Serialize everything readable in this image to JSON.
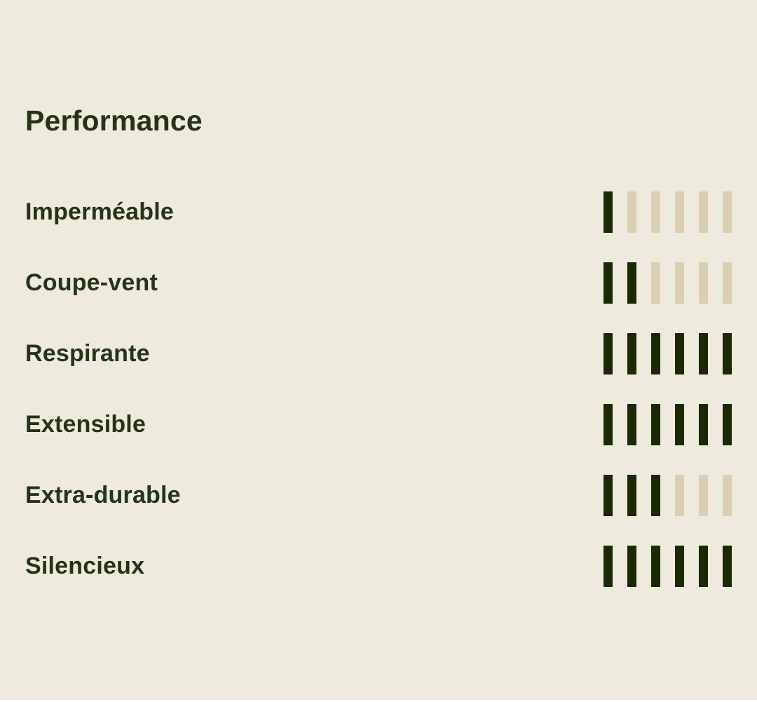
{
  "colors": {
    "background": "#EEEADD",
    "text": "#253417",
    "bar_filled": "#1B2804",
    "bar_empty": "#DBCFB3",
    "bottom_strip": "#FFFFFF"
  },
  "section": {
    "title": "Performance"
  },
  "chart_data": {
    "type": "bar",
    "subtype": "segmented-rating",
    "title": "Performance",
    "categories": [
      "Imperméable",
      "Coupe-vent",
      "Respirante",
      "Extensible",
      "Extra-durable",
      "Silencieux"
    ],
    "values": [
      1,
      2,
      6,
      6,
      3,
      6
    ],
    "scale_max": 6,
    "orientation": "horizontal-rows",
    "legend": "none",
    "grid": "off"
  }
}
